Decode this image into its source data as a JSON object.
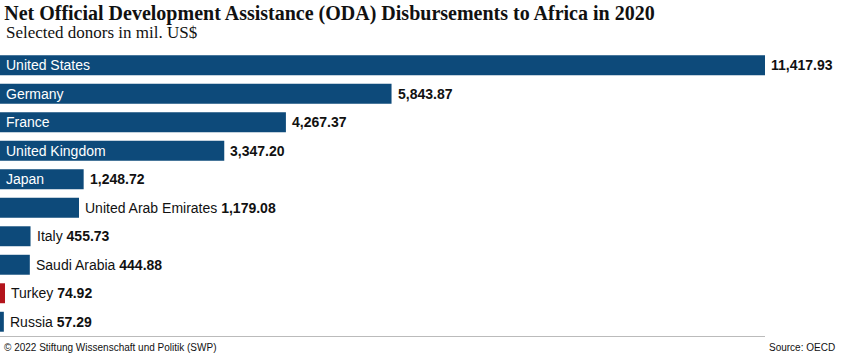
{
  "chart_data": {
    "type": "bar",
    "orientation": "horizontal",
    "title": "Net Official Development Assistance (ODA) Disbursements to Africa in 2020",
    "subtitle": "Selected donors in mil. US$",
    "copyright": "© 2022 Stiftung Wissenschaft und Politik (SWP)",
    "source": "Source: OECD",
    "categories": [
      "United States",
      "Germany",
      "France",
      "United Kingdom",
      "Japan",
      "United Arab Emirates",
      "Italy",
      "Saudi Arabia",
      "Turkey",
      "Russia"
    ],
    "values": [
      11417.93,
      5843.87,
      4267.37,
      3347.2,
      1248.72,
      1179.08,
      455.73,
      444.88,
      74.92,
      57.29
    ],
    "value_labels": [
      "11,417.93",
      "5,843.87",
      "4,267.37",
      "3,347.20",
      "1,248.72",
      "1,179.08",
      "455.73",
      "444.88",
      "74.92",
      "57.29"
    ],
    "colors": [
      "#0d4a7a",
      "#0d4a7a",
      "#0d4a7a",
      "#0d4a7a",
      "#0d4a7a",
      "#0d4a7a",
      "#0d4a7a",
      "#0d4a7a",
      "#b3141c",
      "#0d4a7a"
    ],
    "xlim": [
      0,
      11417.93
    ],
    "data_labels": true,
    "tick_labels": false,
    "grid": false
  }
}
